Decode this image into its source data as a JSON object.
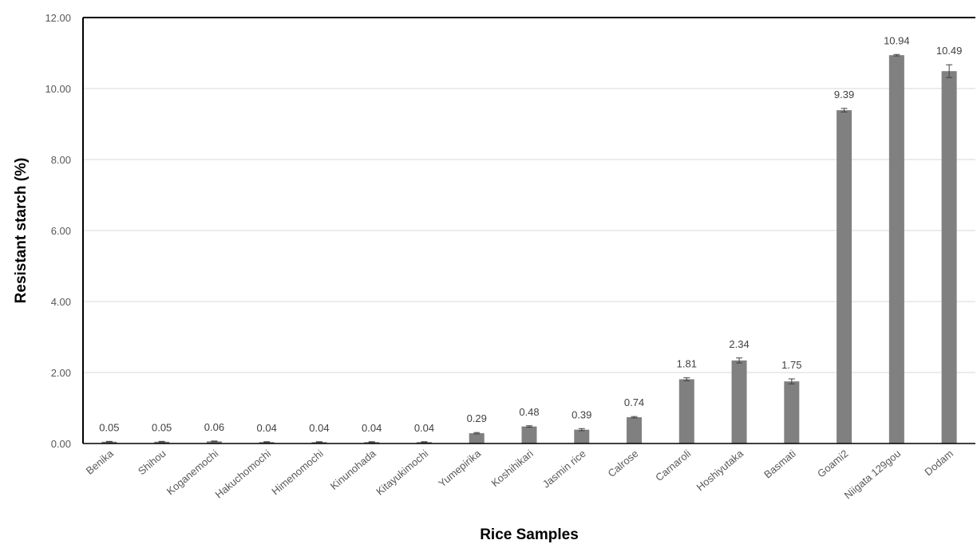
{
  "chart_data": {
    "type": "bar",
    "xlabel": "Rice Samples",
    "ylabel": "Resistant starch (%)",
    "ylim": [
      0,
      12
    ],
    "yticks": [
      "0.00",
      "2.00",
      "4.00",
      "6.00",
      "8.00",
      "10.00",
      "12.00"
    ],
    "grid": true,
    "categories": [
      "Benika",
      "Shihou",
      "Koganemochi",
      "Hakuchomochi",
      "Himenomochi",
      "Kinunohada",
      "Kitayukimochi",
      "Yumepirika",
      "Koshihikari",
      "Jasmin rice",
      "Calrose",
      "Carnaroli",
      "Hoshiyutaka",
      "Basmati",
      "Goami2",
      "Niigata 129gou",
      "Dodam"
    ],
    "values": [
      0.05,
      0.05,
      0.06,
      0.04,
      0.04,
      0.04,
      0.04,
      0.29,
      0.48,
      0.39,
      0.74,
      1.81,
      2.34,
      1.75,
      9.39,
      10.94,
      10.49
    ],
    "value_labels": [
      "0.05",
      "0.05",
      "0.06",
      "0.04",
      "0.04",
      "0.04",
      "0.04",
      "0.29",
      "0.48",
      "0.39",
      "0.74",
      "1.81",
      "2.34",
      "1.75",
      "9.39",
      "10.94",
      "10.49"
    ],
    "errors": [
      0.01,
      0.01,
      0.01,
      0.01,
      0.01,
      0.01,
      0.01,
      0.02,
      0.02,
      0.03,
      0.02,
      0.04,
      0.07,
      0.07,
      0.05,
      0.02,
      0.18
    ],
    "bar_color": "#808080",
    "error_color": "#404040",
    "grid_color": "#d9d9d9"
  }
}
